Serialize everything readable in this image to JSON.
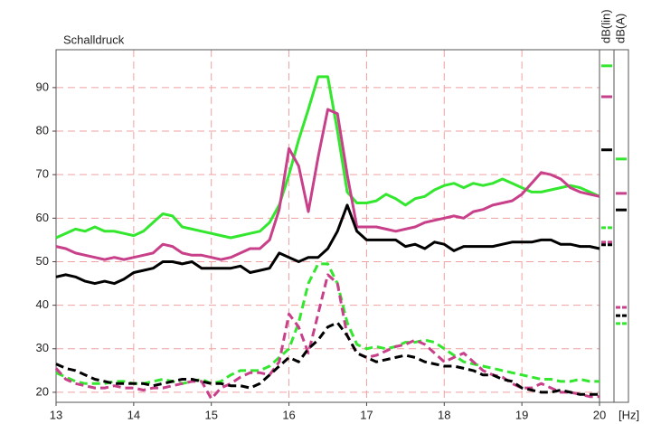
{
  "chart_data": {
    "type": "line",
    "title": "Schalldruck",
    "x_label": "[Hz]",
    "level_columns": [
      "dB(lin)",
      "dB(A)"
    ],
    "xlim": [
      13,
      20
    ],
    "ylim": [
      17.7,
      98.7
    ],
    "xticks": [
      13,
      14,
      15,
      16,
      17,
      18,
      19,
      20
    ],
    "yticks": [
      20,
      30,
      40,
      50,
      60,
      70,
      80,
      90
    ],
    "grid": true,
    "x": [
      13,
      13.125,
      13.25,
      13.375,
      13.5,
      13.625,
      13.75,
      13.875,
      14,
      14.125,
      14.25,
      14.375,
      14.5,
      14.625,
      14.75,
      14.875,
      15,
      15.125,
      15.25,
      15.375,
      15.5,
      15.625,
      15.75,
      15.875,
      16,
      16.125,
      16.25,
      16.375,
      16.5,
      16.625,
      16.75,
      16.875,
      17,
      17.125,
      17.25,
      17.375,
      17.5,
      17.625,
      17.75,
      17.875,
      18,
      18.125,
      18.25,
      18.375,
      18.5,
      18.625,
      18.75,
      18.875,
      19,
      19.125,
      19.25,
      19.375,
      19.5,
      19.625,
      19.75,
      19.875,
      20
    ],
    "series": [
      {
        "color": "#33e62e",
        "dashed": false,
        "level_lin": 95.0,
        "level_a": 73.6,
        "values": [
          55.5,
          56.5,
          57.5,
          57,
          58,
          57,
          57,
          56.5,
          56,
          57,
          59,
          61,
          60.5,
          58,
          57.5,
          57,
          56.5,
          56,
          55.5,
          56,
          56.5,
          57,
          59,
          63,
          70,
          78,
          85,
          92.5,
          92.5,
          80,
          66,
          63.5,
          63.5,
          64,
          65.5,
          64.5,
          63,
          64.5,
          65,
          66.5,
          67.5,
          68,
          67,
          68,
          67.5,
          68,
          69,
          68,
          67,
          66,
          66,
          66.5,
          67,
          67.5,
          67,
          66,
          65
        ]
      },
      {
        "color": "#c8408a",
        "dashed": false,
        "level_lin": 87.9,
        "level_a": 65.7,
        "values": [
          53.5,
          53,
          52,
          51.5,
          51,
          50.5,
          51,
          50.5,
          51,
          51.5,
          52,
          54,
          53.5,
          52,
          51.5,
          51.5,
          51,
          50.5,
          51,
          52,
          53,
          53,
          55,
          62,
          76,
          72,
          61.5,
          74,
          85,
          84,
          70,
          58,
          58,
          58,
          57.5,
          57,
          57.5,
          58,
          59,
          59.5,
          60,
          60.5,
          60,
          61.5,
          62,
          63,
          63.5,
          64,
          65.5,
          68,
          70.5,
          70,
          69,
          67,
          66,
          65.5,
          65
        ]
      },
      {
        "color": "#000000",
        "dashed": false,
        "level_lin": 75.7,
        "level_a": 61.9,
        "values": [
          46.5,
          47,
          46.5,
          45.5,
          45,
          45.5,
          45,
          46,
          47.5,
          48,
          48.5,
          50,
          50,
          49.5,
          50,
          48.5,
          48.5,
          48.5,
          48.5,
          49,
          47.5,
          48,
          48.5,
          52,
          51,
          50,
          51,
          51,
          53,
          57,
          63,
          57,
          55,
          55,
          55,
          55,
          53.5,
          54,
          53,
          54.5,
          54,
          52.5,
          53.5,
          53.5,
          53.5,
          53.5,
          54,
          54.5,
          54.5,
          54.5,
          55,
          55,
          54,
          54,
          53.5,
          53.5,
          53
        ]
      },
      {
        "color": "#33e62e",
        "dashed": true,
        "level_lin": 57.8,
        "level_a": 35.8,
        "values": [
          24.5,
          23.5,
          22.5,
          22,
          22,
          22,
          22.5,
          22.5,
          22,
          22,
          22.5,
          23,
          22.5,
          22,
          22.5,
          23,
          22,
          22.5,
          24,
          25,
          25,
          25,
          26,
          28,
          30,
          36,
          45,
          49.5,
          49.5,
          45,
          36,
          31,
          30,
          30.5,
          30,
          30.5,
          31.5,
          31.5,
          32,
          31.5,
          30,
          28.5,
          27,
          26.5,
          26,
          25.5,
          25,
          24.5,
          24,
          23.5,
          23,
          23,
          22.5,
          22.5,
          23,
          22.5,
          22.5
        ]
      },
      {
        "color": "#c8408a",
        "dashed": true,
        "level_lin": 54.5,
        "level_a": 39.5,
        "values": [
          25.5,
          23,
          22,
          21.5,
          21,
          21,
          21.5,
          21,
          21,
          20.5,
          21,
          21,
          21.5,
          22,
          22.5,
          22.5,
          18.5,
          21,
          22,
          23.5,
          24.5,
          24.5,
          24,
          27,
          38,
          35,
          29,
          38,
          47,
          45,
          33,
          29,
          28,
          28.5,
          29.5,
          30.5,
          31,
          32,
          31,
          29,
          27,
          28,
          29,
          27,
          25,
          24,
          23.5,
          22,
          21,
          21,
          22,
          21,
          20,
          20,
          19.5,
          19,
          19
        ]
      },
      {
        "color": "#000000",
        "dashed": true,
        "level_lin": 53.9,
        "level_a": 37.6,
        "values": [
          26.5,
          25.5,
          25,
          24,
          23,
          22.5,
          22,
          22,
          22,
          22,
          21.5,
          22,
          22.5,
          23,
          23,
          22.5,
          22,
          22,
          21.5,
          21.5,
          21,
          22,
          24,
          26,
          28,
          27,
          30,
          32,
          35,
          36,
          33,
          29,
          28,
          27,
          27.5,
          28,
          28.5,
          28,
          27,
          26.5,
          26,
          26,
          25.5,
          25,
          24,
          24,
          23,
          22.5,
          21,
          20.5,
          20,
          20,
          20.5,
          20,
          19.5,
          19.5,
          19.5
        ]
      }
    ]
  }
}
